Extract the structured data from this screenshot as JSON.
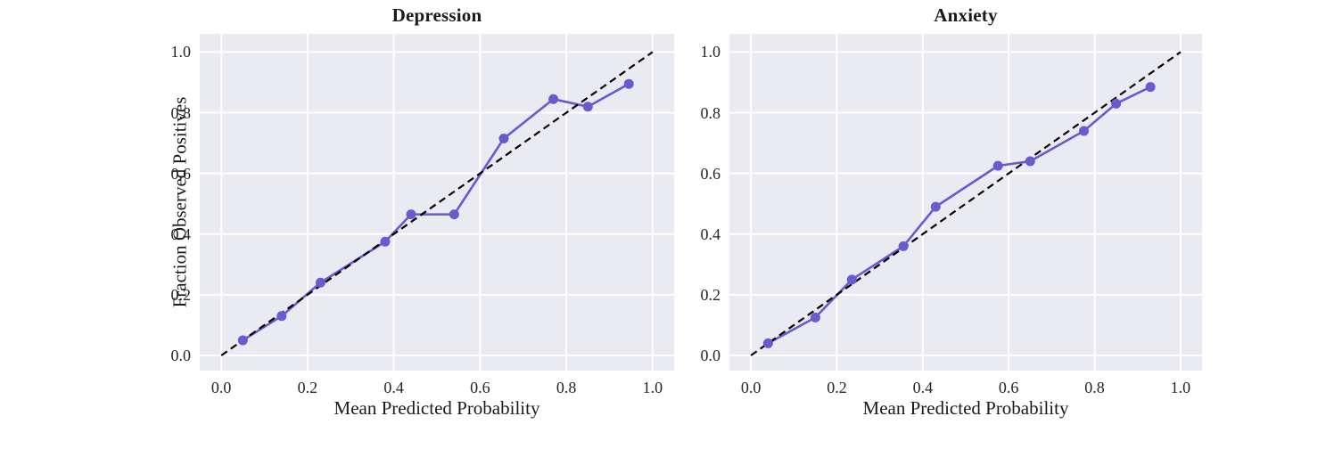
{
  "figure": {
    "background": "#ffffff",
    "plot_background": "#eaeaf2",
    "grid_color": "#ffffff",
    "curve_color": "#6a5acd",
    "diagonal_color": "#000000",
    "text_color": "#262626"
  },
  "chart_data": [
    {
      "type": "line",
      "title": "Depression",
      "xlabel": "Mean Predicted Probability",
      "ylabel": "Fraction Observed Positives",
      "xlim": [
        -0.05,
        1.05
      ],
      "ylim": [
        -0.05,
        1.06
      ],
      "grid": true,
      "legend": "none",
      "x_ticks": [
        "0.0",
        "0.2",
        "0.4",
        "0.6",
        "0.8",
        "1.0"
      ],
      "y_ticks": [
        "0.0",
        "0.2",
        "0.4",
        "0.6",
        "0.8",
        "1.0"
      ],
      "series": [
        {
          "name": "calibration-curve",
          "style": "solid-markers",
          "x": [
            0.05,
            0.14,
            0.23,
            0.38,
            0.44,
            0.54,
            0.655,
            0.77,
            0.85,
            0.945
          ],
          "y": [
            0.05,
            0.13,
            0.24,
            0.375,
            0.465,
            0.465,
            0.715,
            0.845,
            0.82,
            0.895
          ]
        },
        {
          "name": "perfect-calibration",
          "style": "dashed",
          "x": [
            0.0,
            1.0
          ],
          "y": [
            0.0,
            1.0
          ]
        }
      ]
    },
    {
      "type": "line",
      "title": "Anxiety",
      "xlabel": "Mean Predicted Probability",
      "ylabel": "",
      "xlim": [
        -0.05,
        1.05
      ],
      "ylim": [
        -0.05,
        1.06
      ],
      "grid": true,
      "legend": "none",
      "x_ticks": [
        "0.0",
        "0.2",
        "0.4",
        "0.6",
        "0.8",
        "1.0"
      ],
      "y_ticks": [
        "0.0",
        "0.2",
        "0.4",
        "0.6",
        "0.8",
        "1.0"
      ],
      "series": [
        {
          "name": "calibration-curve",
          "style": "solid-markers",
          "x": [
            0.04,
            0.15,
            0.235,
            0.355,
            0.43,
            0.575,
            0.65,
            0.775,
            0.85,
            0.93
          ],
          "y": [
            0.04,
            0.125,
            0.25,
            0.36,
            0.49,
            0.625,
            0.64,
            0.74,
            0.83,
            0.885
          ]
        },
        {
          "name": "perfect-calibration",
          "style": "dashed",
          "x": [
            0.0,
            1.0
          ],
          "y": [
            0.0,
            1.0
          ]
        }
      ]
    }
  ]
}
